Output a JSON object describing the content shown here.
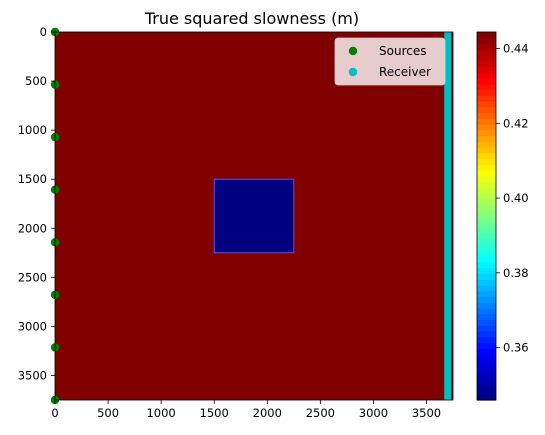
{
  "chart_data": {
    "type": "heatmap",
    "title": "True squared slowness (m)",
    "xlabel": "",
    "ylabel": "",
    "xlim": [
      0,
      3750
    ],
    "ylim": [
      3750,
      0
    ],
    "x_ticks": [
      0,
      500,
      1000,
      1500,
      2000,
      2500,
      3000,
      3500
    ],
    "y_ticks": [
      0,
      500,
      1000,
      1500,
      2000,
      2500,
      3000,
      3500
    ],
    "colormap": "jet",
    "value_range": [
      0.346,
      0.4444
    ],
    "colorbar_ticks": [
      0.36,
      0.38,
      0.4,
      0.42,
      0.44
    ],
    "background_value": 0.4444,
    "anomaly": {
      "x": [
        1500,
        2250
      ],
      "y": [
        1500,
        2250
      ],
      "value": 0.346
    },
    "sources": {
      "name": "Sources",
      "color": "#008000",
      "x": [
        0,
        0,
        0,
        0,
        0,
        0,
        0,
        0
      ],
      "y": [
        0,
        536,
        1071,
        1607,
        2143,
        2679,
        3214,
        3750
      ]
    },
    "receivers": {
      "name": "Receiver",
      "color": "#00bfbf",
      "x": 3700,
      "y_range": [
        0,
        3750
      ]
    },
    "legend": {
      "placement": "top-right"
    },
    "grid": false
  }
}
